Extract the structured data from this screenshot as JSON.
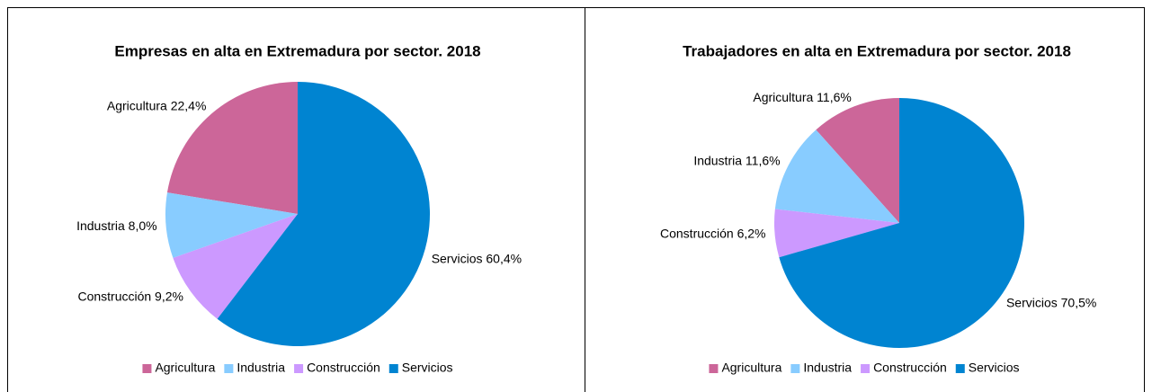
{
  "chart_data": [
    {
      "type": "pie",
      "title": "Empresas en alta en Extremadura por sector. 2018",
      "categories": [
        "Agricultura",
        "Industria",
        "Construcción",
        "Servicios"
      ],
      "values": [
        22.4,
        8.0,
        9.2,
        60.4
      ],
      "value_labels": [
        "22,4%",
        "8,0%",
        "9,2%",
        "60,4%"
      ],
      "colors": [
        "#cc6699",
        "#88ccff",
        "#cc99ff",
        "#0084d1"
      ],
      "legend": "bottom"
    },
    {
      "type": "pie",
      "title": "Trabajadores en alta en Extremadura por sector.  2018",
      "categories": [
        "Agricultura",
        "Industria",
        "Construcción",
        "Servicios"
      ],
      "values": [
        11.6,
        11.6,
        6.2,
        70.5
      ],
      "value_labels": [
        "11,6%",
        "11,6%",
        "6,2%",
        "70,5%"
      ],
      "colors": [
        "#cc6699",
        "#88ccff",
        "#cc99ff",
        "#0084d1"
      ],
      "legend": "bottom"
    }
  ]
}
